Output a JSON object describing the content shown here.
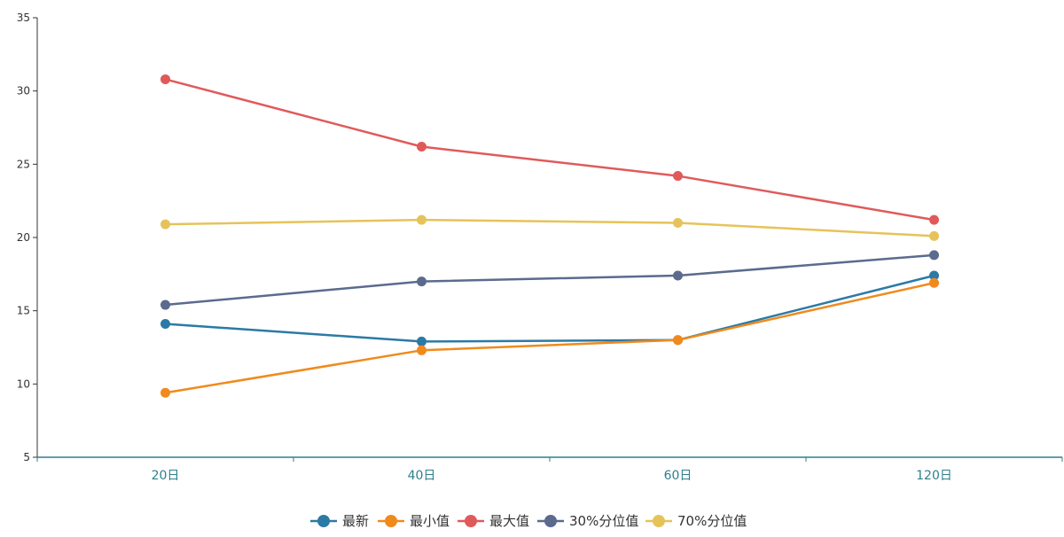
{
  "chart_data": {
    "type": "line",
    "categories": [
      "20日",
      "40日",
      "60日",
      "120日"
    ],
    "ylim": [
      5,
      35
    ],
    "yticks": [
      5,
      10,
      15,
      20,
      25,
      30,
      35
    ],
    "grid": false,
    "legend_position": "bottom-center",
    "series": [
      {
        "name": "最新",
        "color": "#2b7aa5",
        "values": [
          14.1,
          12.9,
          13.0,
          17.4
        ]
      },
      {
        "name": "最小值",
        "color": "#f08a1d",
        "values": [
          9.4,
          12.3,
          13.0,
          16.9
        ]
      },
      {
        "name": "最大值",
        "color": "#e05a5a",
        "values": [
          30.8,
          26.2,
          24.2,
          21.2
        ]
      },
      {
        "name": "30%分位值",
        "color": "#5b6b8e",
        "values": [
          15.4,
          17.0,
          17.4,
          18.8
        ]
      },
      {
        "name": "70%分位值",
        "color": "#e6c35a",
        "values": [
          20.9,
          21.2,
          21.0,
          20.1
        ]
      }
    ]
  }
}
